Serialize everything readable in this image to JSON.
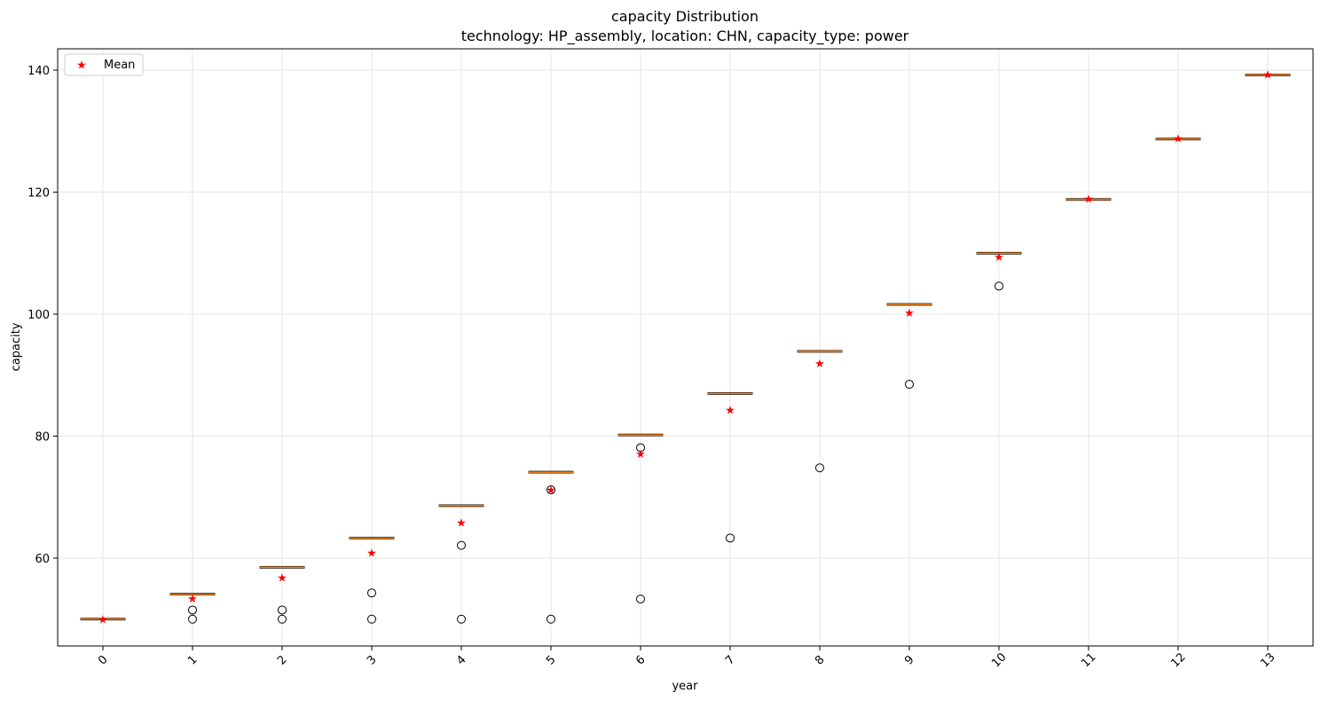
{
  "chart_data": {
    "type": "boxplot",
    "title": "capacity Distribution",
    "subtitle": "technology: HP_assembly, location: CHN, capacity_type: power",
    "xlabel": "year",
    "ylabel": "capacity",
    "categories": [
      "0",
      "1",
      "2",
      "3",
      "4",
      "5",
      "6",
      "7",
      "8",
      "9",
      "10",
      "11",
      "12",
      "13"
    ],
    "ylim": [
      45.6,
      143.5
    ],
    "yticks": [
      60,
      80,
      100,
      120,
      140
    ],
    "grid": true,
    "legend": {
      "label": "Mean",
      "placement": "top-left"
    },
    "medians": [
      50.0,
      54.1,
      58.5,
      63.3,
      68.6,
      74.1,
      80.2,
      87.0,
      93.9,
      101.6,
      110.0,
      118.8,
      128.7,
      139.2
    ],
    "means": [
      50.0,
      53.4,
      56.8,
      60.9,
      65.8,
      71.2,
      77.1,
      84.3,
      91.9,
      100.2,
      109.4,
      118.9,
      128.8,
      139.3
    ],
    "outliers": [
      [],
      [
        51.5,
        50.0
      ],
      [
        51.5,
        50.0
      ],
      [
        54.3,
        50.0
      ],
      [
        62.1,
        50.0
      ],
      [
        71.2,
        50.0
      ],
      [
        78.1,
        53.3
      ],
      [
        63.3
      ],
      [
        74.8
      ],
      [
        88.5
      ],
      [
        104.6
      ],
      [],
      [],
      []
    ]
  },
  "colors": {
    "median": "#ff7f0e",
    "box": "#000000",
    "mean_marker": "#ff0000",
    "grid": "#e6e6e6"
  }
}
